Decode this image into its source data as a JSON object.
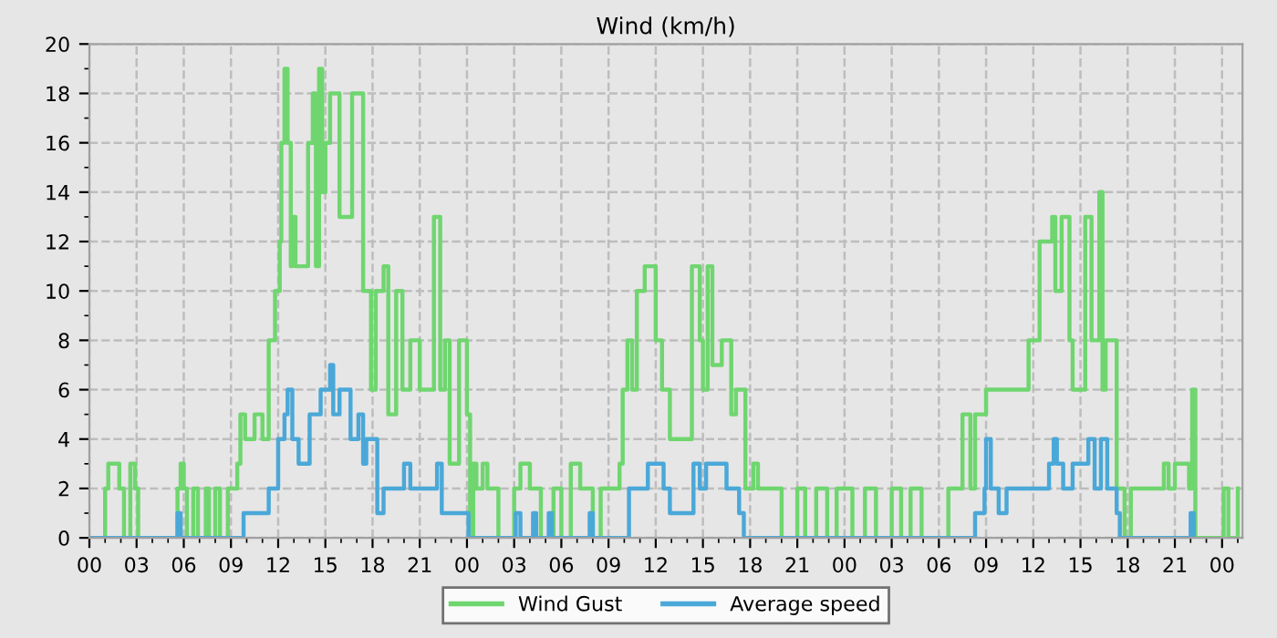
{
  "chart_data": {
    "type": "step",
    "title": "Wind (km/h)",
    "legend": "bottom",
    "grid": true,
    "xlim": [
      0,
      73.3
    ],
    "ylim": [
      0,
      20
    ],
    "xticks": [
      {
        "value": 0,
        "label": "00"
      },
      {
        "value": 1,
        "label": null
      },
      {
        "value": 2,
        "label": null
      },
      {
        "value": 3,
        "label": "03"
      },
      {
        "value": 4,
        "label": null
      },
      {
        "value": 5,
        "label": null
      },
      {
        "value": 6,
        "label": "06"
      },
      {
        "value": 7,
        "label": null
      },
      {
        "value": 8,
        "label": null
      },
      {
        "value": 9,
        "label": "09"
      },
      {
        "value": 10,
        "label": null
      },
      {
        "value": 11,
        "label": null
      },
      {
        "value": 12,
        "label": "12"
      },
      {
        "value": 13,
        "label": null
      },
      {
        "value": 14,
        "label": null
      },
      {
        "value": 15,
        "label": "15"
      },
      {
        "value": 16,
        "label": null
      },
      {
        "value": 17,
        "label": null
      },
      {
        "value": 18,
        "label": "18"
      },
      {
        "value": 19,
        "label": null
      },
      {
        "value": 20,
        "label": null
      },
      {
        "value": 21,
        "label": "21"
      },
      {
        "value": 22,
        "label": null
      },
      {
        "value": 23,
        "label": null
      },
      {
        "value": 24,
        "label": "00"
      },
      {
        "value": 25,
        "label": null
      },
      {
        "value": 26,
        "label": null
      },
      {
        "value": 27,
        "label": "03"
      },
      {
        "value": 28,
        "label": null
      },
      {
        "value": 29,
        "label": null
      },
      {
        "value": 30,
        "label": "06"
      },
      {
        "value": 31,
        "label": null
      },
      {
        "value": 32,
        "label": null
      },
      {
        "value": 33,
        "label": "09"
      },
      {
        "value": 34,
        "label": null
      },
      {
        "value": 35,
        "label": null
      },
      {
        "value": 36,
        "label": "12"
      },
      {
        "value": 37,
        "label": null
      },
      {
        "value": 38,
        "label": null
      },
      {
        "value": 39,
        "label": "15"
      },
      {
        "value": 40,
        "label": null
      },
      {
        "value": 41,
        "label": null
      },
      {
        "value": 42,
        "label": "18"
      },
      {
        "value": 43,
        "label": null
      },
      {
        "value": 44,
        "label": null
      },
      {
        "value": 45,
        "label": "21"
      },
      {
        "value": 46,
        "label": null
      },
      {
        "value": 47,
        "label": null
      },
      {
        "value": 48,
        "label": "00"
      },
      {
        "value": 49,
        "label": null
      },
      {
        "value": 50,
        "label": null
      },
      {
        "value": 51,
        "label": "03"
      },
      {
        "value": 52,
        "label": null
      },
      {
        "value": 53,
        "label": null
      },
      {
        "value": 54,
        "label": "06"
      },
      {
        "value": 55,
        "label": null
      },
      {
        "value": 56,
        "label": null
      },
      {
        "value": 57,
        "label": "09"
      },
      {
        "value": 58,
        "label": null
      },
      {
        "value": 59,
        "label": null
      },
      {
        "value": 60,
        "label": "12"
      },
      {
        "value": 61,
        "label": null
      },
      {
        "value": 62,
        "label": null
      },
      {
        "value": 63,
        "label": "15"
      },
      {
        "value": 64,
        "label": null
      },
      {
        "value": 65,
        "label": null
      },
      {
        "value": 66,
        "label": "18"
      },
      {
        "value": 67,
        "label": null
      },
      {
        "value": 68,
        "label": null
      },
      {
        "value": 69,
        "label": "21"
      },
      {
        "value": 70,
        "label": null
      },
      {
        "value": 71,
        "label": null
      },
      {
        "value": 72,
        "label": "00"
      },
      {
        "value": 73,
        "label": null
      }
    ],
    "yticks": [
      0,
      {
        "value": 1,
        "label": null
      },
      2,
      {
        "value": 3,
        "label": null
      },
      4,
      {
        "value": 5,
        "label": null
      },
      6,
      {
        "value": 7,
        "label": null
      },
      8,
      {
        "value": 9,
        "label": null
      },
      10,
      {
        "value": 11,
        "label": null
      },
      12,
      {
        "value": 13,
        "label": null
      },
      14,
      {
        "value": 15,
        "label": null
      },
      16,
      {
        "value": 17,
        "label": null
      },
      18,
      {
        "value": 19,
        "label": null
      },
      20
    ],
    "series": [
      {
        "name": "Wind Gust",
        "color": "#6fd66f",
        "x": [
          0,
          1.0,
          1.2,
          1.9,
          2.2,
          2.6,
          2.9,
          3.1,
          5.6,
          5.8,
          6.0,
          6.2,
          6.6,
          6.9,
          7.4,
          7.6,
          8.0,
          8.3,
          8.8,
          9.4,
          9.6,
          9.9,
          10.5,
          11.0,
          11.4,
          11.8,
          12.1,
          12.2,
          12.4,
          12.6,
          12.8,
          12.9,
          13.1,
          13.9,
          14.2,
          14.4,
          14.6,
          14.8,
          15.0,
          15.3,
          15.9,
          16.7,
          17.4,
          17.9,
          18.2,
          18.7,
          19.0,
          19.5,
          19.9,
          20.4,
          21.0,
          21.9,
          22.3,
          22.6,
          22.9,
          23.5,
          24.0,
          24.2,
          24.4,
          24.6,
          25.0,
          25.3,
          26.0,
          27.0,
          27.4,
          28.0,
          28.7,
          29.5,
          30.0,
          30.6,
          31.2,
          32.0,
          32.5,
          33.7,
          33.9,
          34.2,
          34.5,
          34.8,
          35.3,
          36.0,
          36.4,
          36.9,
          38.3,
          38.8,
          39.0,
          39.3,
          39.6,
          40.2,
          40.8,
          41.1,
          41.7,
          42.2,
          42.5,
          44.0,
          45.0,
          45.5,
          46.2,
          46.9,
          47.5,
          48.5,
          49.3,
          50.0,
          51.0,
          51.6,
          52.2,
          52.9,
          54.6,
          55.5,
          56.0,
          56.3,
          57.0,
          59.7,
          60.4,
          61.2,
          61.4,
          61.8,
          62.3,
          62.5,
          63.3,
          63.7,
          64.2,
          64.4,
          64.6,
          65.3,
          65.8,
          66.2,
          68.3,
          68.6,
          69.0,
          69.9,
          70.1,
          70.3,
          72.1,
          72.4,
          73.0
        ],
        "values": [
          0,
          2,
          3,
          2,
          0,
          3,
          2,
          0,
          2,
          3,
          2,
          0,
          2,
          0,
          2,
          0,
          2,
          0,
          2,
          3,
          5,
          4,
          5,
          4,
          8,
          10,
          12,
          16,
          19,
          16,
          11,
          13,
          11,
          16,
          18,
          11,
          19,
          14,
          16,
          18,
          13,
          18,
          10,
          6,
          10,
          11,
          5,
          10,
          6,
          8,
          6,
          13,
          6,
          8,
          3,
          8,
          5,
          0,
          3,
          2,
          3,
          2,
          0,
          2,
          3,
          2,
          0,
          2,
          0,
          3,
          2,
          0,
          2,
          3,
          6,
          8,
          6,
          10,
          11,
          8,
          6,
          4,
          11,
          8,
          6,
          11,
          7,
          8,
          5,
          6,
          2,
          3,
          2,
          0,
          2,
          0,
          2,
          0,
          2,
          0,
          2,
          0,
          2,
          0,
          2,
          0,
          2,
          5,
          2,
          5,
          6,
          8,
          12,
          13,
          10,
          13,
          8,
          6,
          13,
          8,
          14,
          6,
          8,
          2,
          0,
          2,
          3,
          2,
          3,
          2,
          6,
          0,
          2,
          0,
          2
        ]
      },
      {
        "name": "Average speed",
        "color": "#4aa8d8",
        "x": [
          0,
          5.6,
          5.8,
          9.8,
          11.2,
          11.4,
          12.0,
          12.4,
          12.6,
          12.9,
          13.3,
          14.0,
          14.7,
          15.3,
          15.5,
          15.9,
          16.6,
          17.1,
          17.4,
          17.6,
          18.3,
          18.7,
          20.0,
          20.4,
          22.1,
          22.4,
          24.1,
          27.1,
          27.4,
          28.2,
          28.4,
          29.2,
          29.4,
          31.8,
          32.0,
          34.3,
          35.5,
          36.5,
          36.9,
          38.4,
          38.8,
          39.2,
          40.5,
          41.3,
          41.6,
          56.3,
          56.9,
          57.0,
          57.3,
          57.8,
          58.3,
          61.0,
          61.3,
          61.5,
          61.9,
          62.5,
          63.5,
          63.9,
          64.3,
          64.7,
          65.3,
          65.5,
          70.0,
          70.2
        ],
        "values": [
          0,
          1,
          0,
          1,
          1,
          2,
          4,
          5,
          6,
          4,
          3,
          5,
          6,
          7,
          5,
          6,
          4,
          5,
          3,
          4,
          1,
          2,
          3,
          2,
          3,
          1,
          0,
          1,
          0,
          1,
          0,
          1,
          0,
          1,
          0,
          2,
          3,
          2,
          1,
          3,
          2,
          3,
          2,
          1,
          0,
          1,
          2,
          4,
          2,
          1,
          2,
          3,
          4,
          3,
          2,
          3,
          4,
          2,
          4,
          2,
          1,
          0,
          1,
          0
        ]
      }
    ]
  }
}
